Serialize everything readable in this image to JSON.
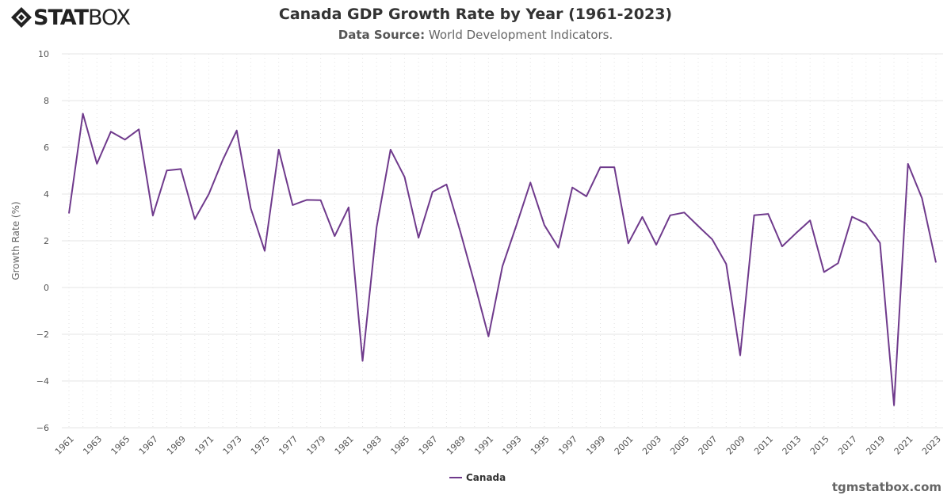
{
  "brand": {
    "logo_text": "STATBOX"
  },
  "header": {
    "title": "Canada GDP Growth Rate by Year (1961-2023)",
    "source_label": "Data Source:",
    "source_value": "World Development Indicators."
  },
  "footer": {
    "site": "tgmstatbox.com"
  },
  "chart_data": {
    "type": "line",
    "title": "Canada GDP Growth Rate by Year (1961-2023)",
    "ylabel": "Growth Rate (%)",
    "xlabel": "",
    "ylim": [
      -6,
      10
    ],
    "yticks": [
      -6,
      -4,
      -2,
      0,
      2,
      4,
      6,
      8,
      10
    ],
    "grid": true,
    "legend_placement": "bottom",
    "x": [
      1961,
      1962,
      1963,
      1964,
      1965,
      1966,
      1967,
      1968,
      1969,
      1970,
      1971,
      1972,
      1973,
      1974,
      1975,
      1976,
      1977,
      1978,
      1979,
      1980,
      1981,
      1982,
      1983,
      1984,
      1985,
      1986,
      1987,
      1988,
      1989,
      1990,
      1991,
      1992,
      1993,
      1994,
      1995,
      1996,
      1997,
      1998,
      1999,
      2000,
      2001,
      2002,
      2003,
      2004,
      2005,
      2006,
      2007,
      2008,
      2009,
      2010,
      2011,
      2012,
      2013,
      2014,
      2015,
      2016,
      2017,
      2018,
      2019,
      2020,
      2021,
      2022,
      2023
    ],
    "series": [
      {
        "name": "Canada",
        "color": "#6f3a8c",
        "values": [
          3.17,
          7.44,
          5.3,
          6.67,
          6.33,
          6.77,
          3.08,
          5.01,
          5.07,
          2.93,
          4.0,
          5.46,
          6.72,
          3.39,
          1.57,
          5.9,
          3.53,
          3.75,
          3.74,
          2.2,
          3.43,
          -3.14,
          2.58,
          5.9,
          4.73,
          2.13,
          4.09,
          4.41,
          2.36,
          0.19,
          -2.09,
          0.91,
          2.66,
          4.49,
          2.67,
          1.71,
          4.28,
          3.9,
          5.15,
          5.15,
          1.89,
          3.02,
          1.83,
          3.09,
          3.21,
          2.63,
          2.06,
          1.01,
          -2.9,
          3.09,
          3.15,
          1.76,
          2.33,
          2.87,
          0.66,
          1.04,
          3.03,
          2.74,
          1.91,
          -5.04,
          5.29,
          3.82,
          1.07
        ]
      }
    ]
  }
}
